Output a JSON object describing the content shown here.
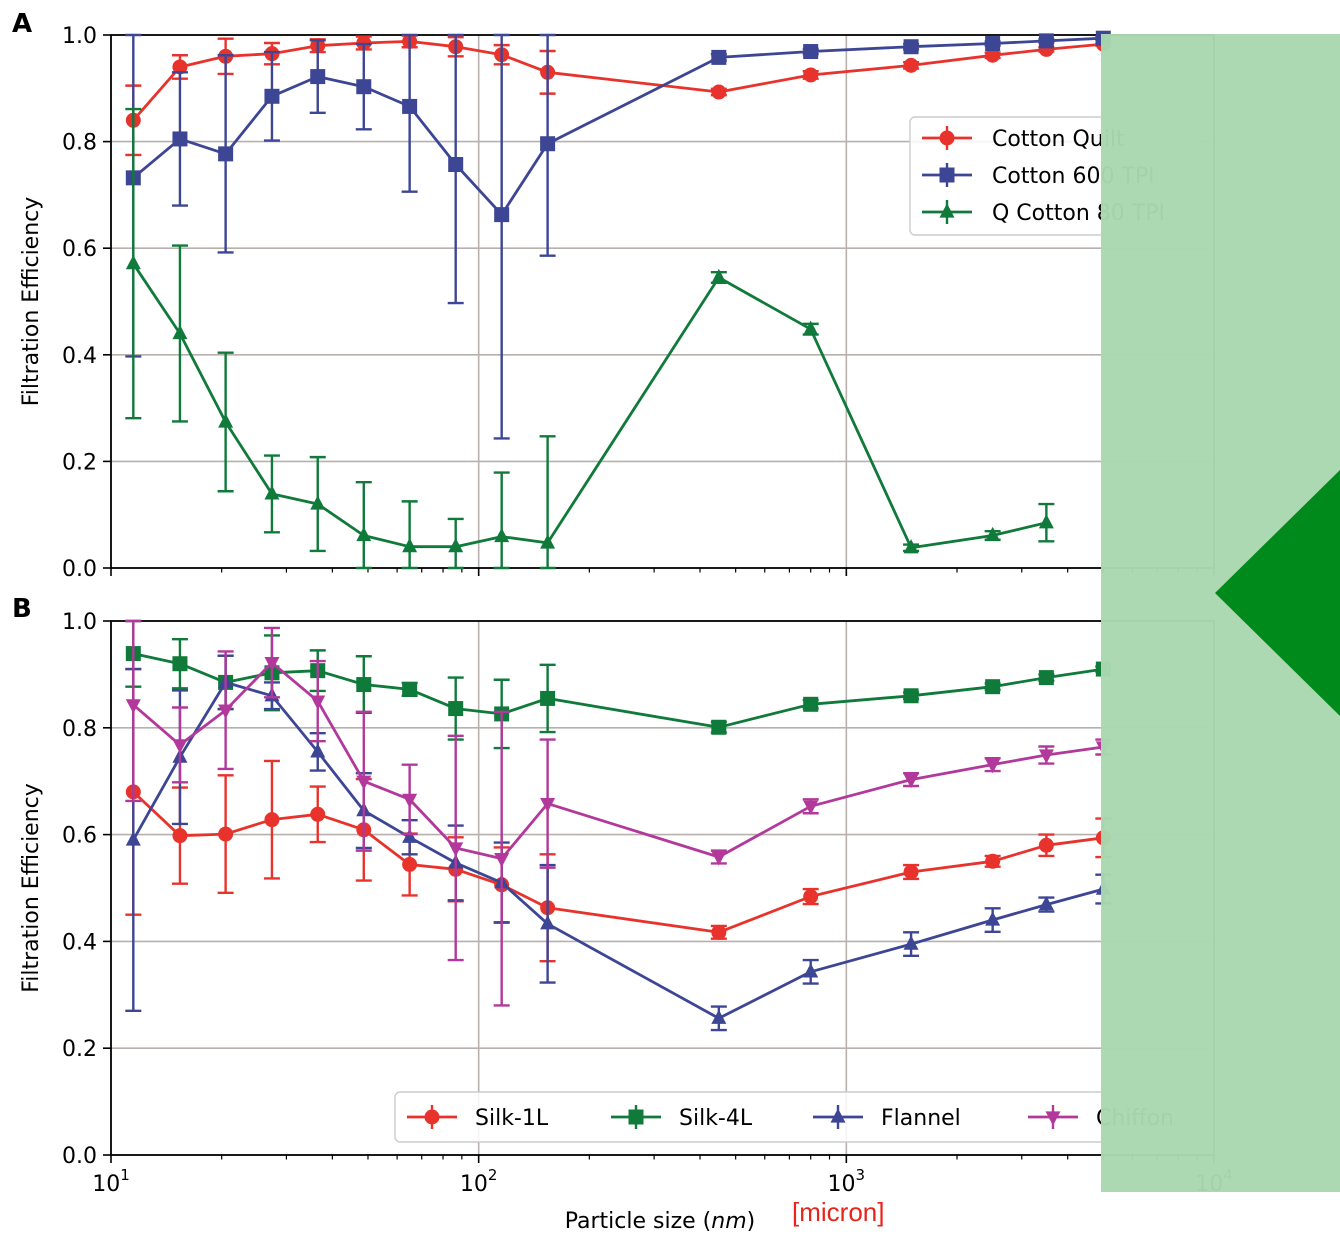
{
  "chart_data": [
    {
      "panel_label": "A",
      "type": "line",
      "xscale": "log",
      "xlim": [
        10,
        10000
      ],
      "ylim": [
        0.0,
        1.0
      ],
      "yticks": [
        "0.0",
        "0.2",
        "0.4",
        "0.6",
        "0.8",
        "1.0"
      ],
      "ylabel": "Filtration Efficiency",
      "grid": true,
      "legend_position": "upper-right",
      "series": [
        {
          "name": "Cotton Quilt",
          "color": "#e8332c",
          "marker": "circle",
          "x": [
            11.5,
            15.4,
            20.5,
            27.4,
            36.5,
            48.7,
            64.9,
            86.6,
            115.5,
            154,
            450,
            800,
            1500,
            2500,
            3500,
            5000
          ],
          "y": [
            0.84,
            0.94,
            0.96,
            0.965,
            0.98,
            0.985,
            0.988,
            0.978,
            0.963,
            0.93,
            0.893,
            0.925,
            0.943,
            0.962,
            0.973,
            0.983
          ],
          "err": [
            0.065,
            0.022,
            0.033,
            0.02,
            0.012,
            0.012,
            0.011,
            0.018,
            0.018,
            0.04,
            0.006,
            0.007,
            0.006,
            0.005,
            0.004,
            0.003
          ]
        },
        {
          "name": "Cotton 600 TPI",
          "color": "#3d4694",
          "marker": "square",
          "x": [
            11.5,
            15.4,
            20.5,
            27.4,
            36.5,
            48.7,
            64.9,
            86.6,
            115.5,
            154,
            450,
            800,
            1500,
            2500,
            3500,
            5000
          ],
          "y": [
            0.732,
            0.805,
            0.777,
            0.885,
            0.922,
            0.903,
            0.866,
            0.757,
            0.663,
            0.796,
            0.958,
            0.969,
            0.978,
            0.984,
            0.989,
            0.994
          ],
          "err": [
            0.335,
            0.125,
            0.185,
            0.083,
            0.068,
            0.08,
            0.16,
            0.26,
            0.42,
            0.21,
            0.006,
            0.005,
            0.005,
            0.004,
            0.003,
            0.003
          ]
        },
        {
          "name": "Q Cotton 80 TPI",
          "color": "#0f7a3a",
          "marker": "triangle-up",
          "x": [
            11.5,
            15.4,
            20.5,
            27.4,
            36.5,
            48.7,
            64.9,
            86.6,
            115.5,
            154,
            450,
            800,
            1500,
            2500,
            3500
          ],
          "y": [
            0.571,
            0.44,
            0.274,
            0.139,
            0.12,
            0.061,
            0.04,
            0.04,
            0.059,
            0.047,
            0.545,
            0.448,
            0.038,
            0.061,
            0.085
          ],
          "err": [
            0.29,
            0.165,
            0.13,
            0.072,
            0.088,
            0.1,
            0.085,
            0.052,
            0.12,
            0.2,
            0.01,
            0.01,
            0.006,
            0.008,
            0.035
          ]
        }
      ]
    },
    {
      "panel_label": "B",
      "type": "line",
      "xscale": "log",
      "xlim": [
        10,
        10000
      ],
      "ylim": [
        0.0,
        1.0
      ],
      "yticks": [
        "0.0",
        "0.2",
        "0.4",
        "0.6",
        "0.8",
        "1.0"
      ],
      "xticks": [
        {
          "base": "10",
          "exp": "1"
        },
        {
          "base": "10",
          "exp": "2"
        },
        {
          "base": "10",
          "exp": "3"
        },
        {
          "base": "10",
          "exp": "4"
        }
      ],
      "xlabel": "Particle size",
      "xlabel_unit": "nm",
      "ylabel": "Filtration Efficiency",
      "grid": true,
      "legend_position": "lower-center",
      "series": [
        {
          "name": "Silk-1L",
          "color": "#e8332c",
          "marker": "circle",
          "x": [
            11.5,
            15.4,
            20.5,
            27.4,
            36.5,
            48.7,
            64.9,
            86.6,
            115.5,
            154,
            450,
            800,
            1500,
            2500,
            3500,
            5000
          ],
          "y": [
            0.68,
            0.598,
            0.601,
            0.628,
            0.638,
            0.609,
            0.544,
            0.535,
            0.506,
            0.463,
            0.417,
            0.484,
            0.53,
            0.55,
            0.58,
            0.594
          ],
          "err": [
            0.23,
            0.09,
            0.11,
            0.11,
            0.052,
            0.095,
            0.058,
            0.06,
            0.07,
            0.1,
            0.012,
            0.014,
            0.013,
            0.01,
            0.02,
            0.036
          ]
        },
        {
          "name": "Silk-4L",
          "color": "#0f7a3a",
          "marker": "square",
          "x": [
            11.5,
            15.4,
            20.5,
            27.4,
            36.5,
            48.7,
            64.9,
            86.6,
            115.5,
            154,
            450,
            800,
            1500,
            2500,
            3500,
            5000
          ],
          "y": [
            0.939,
            0.92,
            0.885,
            0.903,
            0.907,
            0.881,
            0.872,
            0.836,
            0.826,
            0.855,
            0.801,
            0.844,
            0.86,
            0.877,
            0.894,
            0.91
          ],
          "err": [
            0.062,
            0.046,
            0.05,
            0.07,
            0.038,
            0.053,
            0.012,
            0.058,
            0.064,
            0.063,
            0.01,
            0.008,
            0.006,
            0.006,
            0.006,
            0.005
          ]
        },
        {
          "name": "Flannel",
          "color": "#3d4694",
          "marker": "triangle-up",
          "x": [
            11.5,
            15.4,
            20.5,
            27.4,
            36.5,
            48.7,
            64.9,
            86.6,
            115.5,
            154,
            450,
            800,
            1500,
            2500,
            3500,
            5000
          ],
          "y": [
            0.59,
            0.745,
            0.885,
            0.86,
            0.755,
            0.645,
            0.595,
            0.547,
            0.51,
            0.433,
            0.256,
            0.343,
            0.395,
            0.44,
            0.469,
            0.498
          ],
          "err": [
            0.32,
            0.125,
            0.05,
            0.025,
            0.035,
            0.07,
            0.032,
            0.07,
            0.075,
            0.11,
            0.022,
            0.022,
            0.022,
            0.022,
            0.013,
            0.027
          ]
        },
        {
          "name": "Chiffon",
          "color": "#b2399b",
          "marker": "triangle-down",
          "x": [
            11.5,
            15.4,
            20.5,
            27.4,
            36.5,
            48.7,
            64.9,
            86.6,
            115.5,
            154,
            450,
            800,
            1500,
            2500,
            3500,
            5000
          ],
          "y": [
            0.843,
            0.768,
            0.833,
            0.922,
            0.85,
            0.7,
            0.666,
            0.575,
            0.555,
            0.658,
            0.558,
            0.653,
            0.703,
            0.731,
            0.749,
            0.764
          ],
          "err": [
            0.18,
            0.07,
            0.11,
            0.065,
            0.075,
            0.13,
            0.065,
            0.21,
            0.275,
            0.12,
            0.012,
            0.013,
            0.012,
            0.012,
            0.016,
            0.014
          ]
        }
      ]
    }
  ],
  "annotation": "[micron]",
  "colors": {
    "highlight_band": "#a9d8b0",
    "arrow": "#008a1c",
    "annotation_text": "#e8241c"
  }
}
